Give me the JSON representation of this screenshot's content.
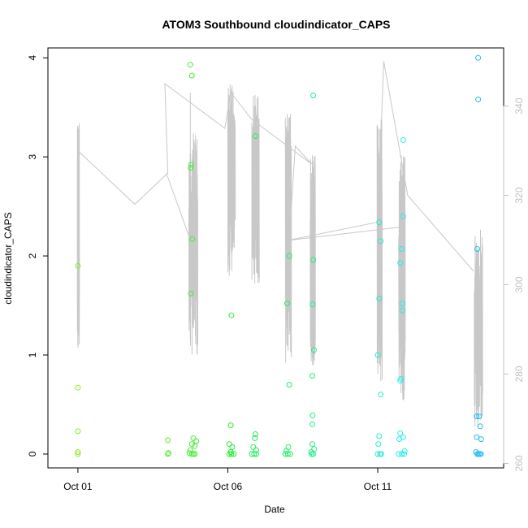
{
  "chart_data": {
    "type": "scatter",
    "title": "ATOM3 Southbound cloudindicator_CAPS",
    "xlabel": "Date",
    "ylabel": "cloudindicator_CAPS",
    "x_ticks": [
      {
        "label": "Oct 01",
        "day": 1
      },
      {
        "label": "Oct 06",
        "day": 6
      },
      {
        "label": "Oct 11",
        "day": 11
      }
    ],
    "xlim_days": [
      0.0,
      15.2
    ],
    "y_left": {
      "ticks": [
        0,
        1,
        2,
        3,
        4
      ],
      "labels": [
        "0",
        "1",
        "2",
        "3",
        "4"
      ],
      "lim": [
        -0.14,
        4.1
      ]
    },
    "y_right": {
      "ticks": [
        260,
        280,
        300,
        320,
        340
      ],
      "labels": [
        "260",
        "280",
        "300",
        "320",
        "340"
      ],
      "lim": [
        259,
        353
      ],
      "color": "#c0c0c0"
    },
    "grid": false,
    "legend": "none",
    "points": [
      {
        "x": 1.0,
        "y": 1.9,
        "c": "#88ee22"
      },
      {
        "x": 1.0,
        "y": 0.67,
        "c": "#88ee22"
      },
      {
        "x": 1.0,
        "y": 0.23,
        "c": "#88ee22"
      },
      {
        "x": 1.0,
        "y": 0.02,
        "c": "#88ee22"
      },
      {
        "x": 1.0,
        "y": 0.0,
        "c": "#88ee22"
      },
      {
        "x": 4.0,
        "y": 0.14,
        "c": "#55ee33"
      },
      {
        "x": 4.0,
        "y": 0.0,
        "c": "#55ee33"
      },
      {
        "x": 4.02,
        "y": 0.01,
        "c": "#55ee33"
      },
      {
        "x": 4.75,
        "y": 3.93,
        "c": "#44ee33"
      },
      {
        "x": 4.8,
        "y": 3.82,
        "c": "#44ee33"
      },
      {
        "x": 4.78,
        "y": 2.92,
        "c": "#44ee33"
      },
      {
        "x": 4.76,
        "y": 2.89,
        "c": "#44ee33"
      },
      {
        "x": 4.82,
        "y": 2.17,
        "c": "#44ee33"
      },
      {
        "x": 4.77,
        "y": 1.62,
        "c": "#44ee33"
      },
      {
        "x": 4.85,
        "y": 0.16,
        "c": "#44ee33"
      },
      {
        "x": 4.95,
        "y": 0.13,
        "c": "#44ee33"
      },
      {
        "x": 4.8,
        "y": 0.1,
        "c": "#44ee33"
      },
      {
        "x": 4.9,
        "y": 0.08,
        "c": "#44ee33"
      },
      {
        "x": 4.75,
        "y": 0.04,
        "c": "#44ee33"
      },
      {
        "x": 4.72,
        "y": 0.01,
        "c": "#44ee33"
      },
      {
        "x": 4.8,
        "y": 0.0,
        "c": "#44ee33"
      },
      {
        "x": 4.85,
        "y": 0.0,
        "c": "#44ee33"
      },
      {
        "x": 4.9,
        "y": 0.0,
        "c": "#44ee33"
      },
      {
        "x": 6.12,
        "y": 1.4,
        "c": "#22ee33"
      },
      {
        "x": 6.1,
        "y": 0.29,
        "c": "#22ee33"
      },
      {
        "x": 6.05,
        "y": 0.1,
        "c": "#22ee33"
      },
      {
        "x": 6.15,
        "y": 0.07,
        "c": "#22ee33"
      },
      {
        "x": 6.1,
        "y": 0.02,
        "c": "#22ee33"
      },
      {
        "x": 6.05,
        "y": 0.0,
        "c": "#22ee33"
      },
      {
        "x": 6.12,
        "y": 0.0,
        "c": "#22ee33"
      },
      {
        "x": 6.2,
        "y": 0.0,
        "c": "#22ee33"
      },
      {
        "x": 6.92,
        "y": 3.21,
        "c": "#22ee55"
      },
      {
        "x": 6.92,
        "y": 0.2,
        "c": "#22ee55"
      },
      {
        "x": 6.9,
        "y": 0.16,
        "c": "#22ee55"
      },
      {
        "x": 6.85,
        "y": 0.07,
        "c": "#22ee55"
      },
      {
        "x": 6.95,
        "y": 0.04,
        "c": "#22ee55"
      },
      {
        "x": 6.8,
        "y": 0.0,
        "c": "#22ee55"
      },
      {
        "x": 6.88,
        "y": 0.0,
        "c": "#22ee55"
      },
      {
        "x": 6.95,
        "y": 0.0,
        "c": "#22ee55"
      },
      {
        "x": 8.05,
        "y": 2.0,
        "c": "#22ee66"
      },
      {
        "x": 7.98,
        "y": 1.52,
        "c": "#22ee66"
      },
      {
        "x": 8.05,
        "y": 0.7,
        "c": "#22ee66"
      },
      {
        "x": 8.02,
        "y": 0.07,
        "c": "#22ee66"
      },
      {
        "x": 7.95,
        "y": 0.03,
        "c": "#22ee66"
      },
      {
        "x": 8.0,
        "y": 0.0,
        "c": "#22ee66"
      },
      {
        "x": 8.08,
        "y": 0.0,
        "c": "#22ee66"
      },
      {
        "x": 7.92,
        "y": 0.0,
        "c": "#22ee66"
      },
      {
        "x": 8.85,
        "y": 3.62,
        "c": "#22ee88"
      },
      {
        "x": 8.85,
        "y": 1.96,
        "c": "#22ee88"
      },
      {
        "x": 8.83,
        "y": 1.51,
        "c": "#22ee88"
      },
      {
        "x": 8.87,
        "y": 1.05,
        "c": "#22ee88"
      },
      {
        "x": 8.82,
        "y": 0.79,
        "c": "#22ee88"
      },
      {
        "x": 8.83,
        "y": 0.39,
        "c": "#22ee88"
      },
      {
        "x": 8.82,
        "y": 0.3,
        "c": "#22ee88"
      },
      {
        "x": 8.82,
        "y": 0.1,
        "c": "#22ee88"
      },
      {
        "x": 8.88,
        "y": 0.05,
        "c": "#22ee88"
      },
      {
        "x": 8.78,
        "y": 0.02,
        "c": "#22ee88"
      },
      {
        "x": 8.8,
        "y": 0.0,
        "c": "#22ee88"
      },
      {
        "x": 8.85,
        "y": 0.0,
        "c": "#22ee88"
      },
      {
        "x": 11.05,
        "y": 2.34,
        "c": "#22eecc"
      },
      {
        "x": 11.1,
        "y": 2.15,
        "c": "#22eecc"
      },
      {
        "x": 11.05,
        "y": 1.57,
        "c": "#22eecc"
      },
      {
        "x": 11.0,
        "y": 1.0,
        "c": "#22eecc"
      },
      {
        "x": 11.1,
        "y": 0.6,
        "c": "#22eecc"
      },
      {
        "x": 11.05,
        "y": 0.18,
        "c": "#22eecc"
      },
      {
        "x": 11.02,
        "y": 0.1,
        "c": "#22eecc"
      },
      {
        "x": 11.0,
        "y": 0.0,
        "c": "#22eecc"
      },
      {
        "x": 11.08,
        "y": 0.0,
        "c": "#22eecc"
      },
      {
        "x": 11.12,
        "y": 0.0,
        "c": "#22eecc"
      },
      {
        "x": 11.85,
        "y": 3.17,
        "c": "#22eeee"
      },
      {
        "x": 11.85,
        "y": 2.4,
        "c": "#22eeee"
      },
      {
        "x": 11.8,
        "y": 2.07,
        "c": "#22eeee"
      },
      {
        "x": 11.75,
        "y": 1.93,
        "c": "#22eeee"
      },
      {
        "x": 11.82,
        "y": 1.52,
        "c": "#22eeee"
      },
      {
        "x": 11.82,
        "y": 1.45,
        "c": "#22eeee"
      },
      {
        "x": 11.78,
        "y": 0.76,
        "c": "#22eeee"
      },
      {
        "x": 11.75,
        "y": 0.74,
        "c": "#22eeee"
      },
      {
        "x": 11.75,
        "y": 0.21,
        "c": "#22eeee"
      },
      {
        "x": 11.85,
        "y": 0.17,
        "c": "#22eeee"
      },
      {
        "x": 11.72,
        "y": 0.15,
        "c": "#22eeee"
      },
      {
        "x": 11.9,
        "y": 0.03,
        "c": "#22eeee"
      },
      {
        "x": 11.7,
        "y": 0.0,
        "c": "#22eeee"
      },
      {
        "x": 11.8,
        "y": 0.0,
        "c": "#22eeee"
      },
      {
        "x": 11.88,
        "y": 0.0,
        "c": "#22eeee"
      },
      {
        "x": 14.35,
        "y": 4.0,
        "c": "#22bbee"
      },
      {
        "x": 14.35,
        "y": 3.58,
        "c": "#22bbee"
      },
      {
        "x": 14.32,
        "y": 2.07,
        "c": "#22bbee"
      },
      {
        "x": 14.3,
        "y": 0.38,
        "c": "#22bbee"
      },
      {
        "x": 14.38,
        "y": 0.38,
        "c": "#22bbee"
      },
      {
        "x": 14.42,
        "y": 0.28,
        "c": "#22bbee"
      },
      {
        "x": 14.3,
        "y": 0.17,
        "c": "#22bbee"
      },
      {
        "x": 14.45,
        "y": 0.15,
        "c": "#22bbee"
      },
      {
        "x": 14.28,
        "y": 0.02,
        "c": "#22bbee"
      },
      {
        "x": 14.32,
        "y": 0.0,
        "c": "#22bbee"
      },
      {
        "x": 14.36,
        "y": 0.0,
        "c": "#22bbee"
      },
      {
        "x": 14.4,
        "y": 0.0,
        "c": "#22bbee"
      },
      {
        "x": 14.44,
        "y": 0.0,
        "c": "#22bbee"
      }
    ],
    "right_axis_series": {
      "name": "",
      "color": "#c8c8c8",
      "long_segments": [
        [
          [
            1.0,
            330
          ],
          [
            2.9,
            318
          ],
          [
            4.0,
            325
          ],
          [
            3.9,
            345
          ],
          [
            5.9,
            335
          ],
          [
            6.1,
            343
          ],
          [
            6.8,
            337
          ],
          [
            8.8,
            327
          ],
          [
            8.25,
            331
          ],
          [
            8.05,
            310
          ],
          [
            11.0,
            314
          ],
          [
            11.2,
            350
          ],
          [
            12.0,
            320
          ],
          [
            14.2,
            303
          ]
        ],
        [
          [
            3.95,
            325
          ],
          [
            4.75,
            310
          ],
          [
            4.75,
            343
          ]
        ],
        [
          [
            8.1,
            310
          ],
          [
            11.9,
            313
          ]
        ]
      ],
      "bursts": [
        {
          "x0": 0.98,
          "x1": 1.05,
          "min": 285,
          "max": 337
        },
        {
          "x0": 4.7,
          "x1": 5.0,
          "min": 284,
          "max": 334
        },
        {
          "x0": 6.0,
          "x1": 6.25,
          "min": 302,
          "max": 345
        },
        {
          "x0": 6.8,
          "x1": 7.05,
          "min": 300,
          "max": 343
        },
        {
          "x0": 7.92,
          "x1": 8.12,
          "min": 282,
          "max": 340
        },
        {
          "x0": 8.75,
          "x1": 8.92,
          "min": 282,
          "max": 329
        },
        {
          "x0": 10.98,
          "x1": 11.15,
          "min": 277,
          "max": 337
        },
        {
          "x0": 11.7,
          "x1": 11.92,
          "min": 274,
          "max": 329
        },
        {
          "x0": 14.22,
          "x1": 14.5,
          "min": 268,
          "max": 313
        }
      ]
    }
  }
}
